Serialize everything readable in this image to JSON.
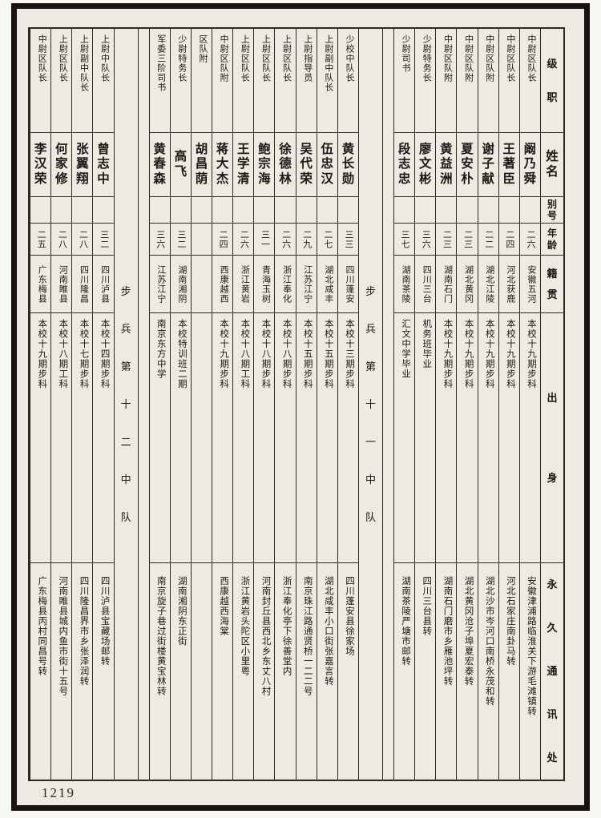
{
  "page": {
    "number": "1219",
    "paper_color": "#edeae3",
    "frame_color": "#17140f",
    "line_color": "#2d2921"
  },
  "header": {
    "rank": "级职",
    "name": "姓名",
    "alias": "别号",
    "age": "年龄",
    "native": "籍贯",
    "origin": "出身",
    "address": "永久通讯处"
  },
  "sections": [
    "步兵第十一中队",
    "步兵第十二中队"
  ],
  "columns": [
    {
      "type": "person",
      "rank": "中尉区队长",
      "name": "阚乃舜",
      "alias": "",
      "age": "二六",
      "native": "安徽五河",
      "origin": "本校十九期步科",
      "address": "安徽津浦路临淮关下游毛滩镇转"
    },
    {
      "type": "person",
      "rank": "中尉区队长",
      "name": "王著臣",
      "alias": "",
      "age": "二四",
      "native": "河北获鹿",
      "origin": "本校十九期步科",
      "address": "河北石家庄南卦马转"
    },
    {
      "type": "person",
      "rank": "中尉区队附",
      "name": "谢子献",
      "alias": "",
      "age": "二二",
      "native": "湖北江陵",
      "origin": "本校十九期步科",
      "address": "湖北沙市岑河口南桥永茂和转"
    },
    {
      "type": "person",
      "rank": "中尉区队附",
      "name": "夏安朴",
      "alias": "",
      "age": "二三",
      "native": "湖北黄冈",
      "origin": "本校十九期步科",
      "address": "湖北黄冈沧子埠夏宏泰转"
    },
    {
      "type": "person",
      "rank": "中尉区队附",
      "name": "黄益洲",
      "alias": "",
      "age": "二三",
      "native": "湖南石门",
      "origin": "本校十九期步科",
      "address": "湖南石门磨市乡雁池坪转"
    },
    {
      "type": "person",
      "rank": "少尉特务长",
      "name": "廖文彬",
      "alias": "",
      "age": "三六",
      "native": "四川三台",
      "origin": "机务班毕业",
      "address": "四川三台县转"
    },
    {
      "type": "person",
      "rank": "少尉司书",
      "name": "段志忠",
      "alias": "",
      "age": "三七",
      "native": "湖南茶陵",
      "origin": "汇文中学毕业",
      "address": "湖南茶陵严塘市邮转"
    },
    {
      "type": "spacer"
    },
    {
      "type": "section",
      "title": "步兵第十一中队"
    },
    {
      "type": "person",
      "rank": "少校中队长",
      "name": "黄长勋",
      "alias": "",
      "age": "三三",
      "native": "四川蓬安",
      "origin": "本校十三期步科",
      "address": "四川蓬安县徐家场"
    },
    {
      "type": "person",
      "rank": "上尉副中队长",
      "name": "伍忠汉",
      "alias": "",
      "age": "二七",
      "native": "湖北咸丰",
      "origin": "本校十五期步科",
      "address": "湖北咸丰小口街张嘉言转"
    },
    {
      "type": "person",
      "rank": "上尉指导员",
      "name": "吴代荣",
      "alias": "",
      "age": "二九",
      "native": "江苏江宁",
      "origin": "本校十五期步科",
      "address": "南京珠江路通贤桥一二二号"
    },
    {
      "type": "person",
      "rank": "上尉区队长",
      "name": "徐德林",
      "alias": "",
      "age": "二六",
      "native": "浙江奉化",
      "origin": "本校十八期步科",
      "address": "浙江奉化亭下徐善堂内"
    },
    {
      "type": "person",
      "rank": "上尉区队长",
      "name": "鲍宗海",
      "alias": "",
      "age": "三一",
      "native": "青海玉树",
      "origin": "本校十八期步科",
      "address": "河南封丘县西北乡东丈八村"
    },
    {
      "type": "person",
      "rank": "上尉区队长",
      "name": "王学清",
      "alias": "",
      "age": "二六",
      "native": "浙江黄岩",
      "origin": "本校十八期工科",
      "address": "浙江黄岩头陀区小里粤"
    },
    {
      "type": "person",
      "rank": "中尉区队附",
      "name": "蒋大杰",
      "alias": "",
      "age": "二四",
      "native": "西康越西",
      "origin": "本校十九期步科",
      "address": "西康越西海棠"
    },
    {
      "type": "person",
      "rank": "区队附",
      "name": "胡昌荫",
      "alias": "",
      "age": "",
      "native": "",
      "origin": "",
      "address": ""
    },
    {
      "type": "person",
      "rank": "少尉特务长",
      "name": "高飞",
      "alias": "",
      "age": "三二",
      "native": "湖南湘阴",
      "origin": "本校特训班二期",
      "address": "湖南湘阴东正街"
    },
    {
      "type": "person",
      "rank": "军委三阶司书",
      "name": "黄春森",
      "alias": "",
      "age": "三六",
      "native": "江苏江宁",
      "origin": "南京东方中学",
      "address": "南京旋子巷过街楼黄宝林转"
    },
    {
      "type": "spacer"
    },
    {
      "type": "section",
      "title": "步兵第十二中队"
    },
    {
      "type": "person",
      "rank": "上尉中队长",
      "name": "曾志中",
      "alias": "",
      "age": "三二",
      "native": "四川泸县",
      "origin": "本校十四期步科",
      "address": "四川泸县宝藏场邮转"
    },
    {
      "type": "person",
      "rank": "上尉副中队长",
      "name": "张翼翔",
      "alias": "",
      "age": "二八",
      "native": "四川隆昌",
      "origin": "本校十七期步科",
      "address": "四川隆昌界市乡张泽润转"
    },
    {
      "type": "person",
      "rank": "上尉区队长",
      "name": "何家修",
      "alias": "",
      "age": "二八",
      "native": "河南睢县",
      "origin": "本校十八期工科",
      "address": "河南睢县城内鱼市街十五号"
    },
    {
      "type": "person",
      "rank": "中尉区队长",
      "name": "李汉荣",
      "alias": "",
      "age": "二五",
      "native": "广东梅县",
      "origin": "本校十九期步科",
      "address": "广东梅县丙村同昌号转"
    }
  ]
}
